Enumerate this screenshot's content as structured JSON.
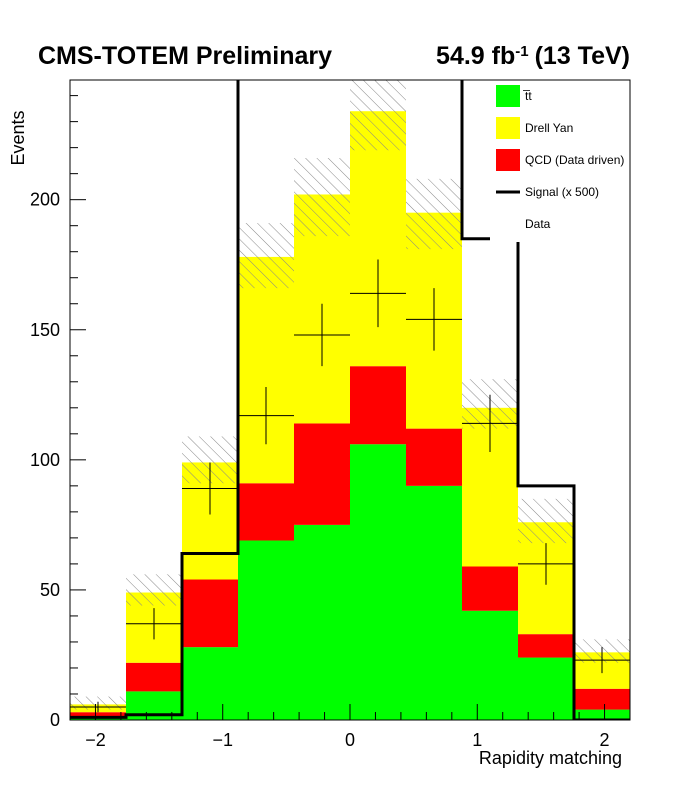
{
  "header": {
    "experiment": "CMS-TOTEM Preliminary",
    "lumi_value": "54.9 fb",
    "lumi_exp": "-1",
    "energy": "(13 TeV)"
  },
  "colors": {
    "ttbar": "#00ff00",
    "drell_yan": "#ffff00",
    "qcd": "#ff0000",
    "signal": "#000000",
    "data": "#000000"
  },
  "chart_data": {
    "type": "bar",
    "stacked": true,
    "xlabel": "Rapidity matching",
    "ylabel": "Events",
    "xlim": [
      -2.2,
      2.2
    ],
    "ylim": [
      0,
      246
    ],
    "bin_edges": [
      -2.2,
      -1.76,
      -1.32,
      -0.88,
      -0.44,
      0.0,
      0.44,
      0.88,
      1.32,
      1.76,
      2.2
    ],
    "x_ticks": [
      -2,
      -1,
      0,
      1,
      2
    ],
    "x_tick_labels": [
      "−2",
      "−1",
      "0",
      "1",
      "2"
    ],
    "y_ticks": [
      0,
      50,
      100,
      150,
      200
    ],
    "y_tick_labels": [
      "0",
      "50",
      "100",
      "150",
      "200"
    ],
    "series": [
      {
        "key": "ttbar",
        "name": "t̅t",
        "values": [
          1,
          11,
          28,
          69,
          75,
          106,
          90,
          42,
          24,
          4
        ]
      },
      {
        "key": "qcd",
        "name": "QCD (Data driven)",
        "values": [
          2,
          11,
          26,
          22,
          39,
          30,
          22,
          17,
          9,
          8
        ]
      },
      {
        "key": "drell_yan",
        "name": "Drell Yan",
        "values": [
          3,
          27,
          45,
          87,
          88,
          98,
          83,
          61,
          43,
          14
        ]
      }
    ],
    "uncertainty_band": {
      "lower": [
        4,
        44,
        91,
        166,
        186,
        219,
        181,
        112,
        68,
        22
      ],
      "upper": [
        9,
        56,
        109,
        191,
        216,
        246,
        208,
        131,
        85,
        31
      ]
    },
    "signal": {
      "name": "Signal (x 500)",
      "values": [
        1,
        2,
        64,
        400,
        400,
        400,
        400,
        185,
        90,
        0
      ]
    },
    "data": {
      "name": "Data",
      "x": [
        -1.98,
        -1.54,
        -1.1,
        -0.66,
        -0.22,
        0.22,
        0.66,
        1.1,
        1.54,
        1.98
      ],
      "y": [
        5,
        37,
        89,
        117,
        148,
        164,
        154,
        114,
        60,
        23
      ],
      "yerr": [
        2,
        6,
        10,
        11,
        12,
        13,
        12,
        11,
        8,
        5
      ]
    },
    "legend_order": [
      "ttbar",
      "drell_yan",
      "qcd",
      "signal",
      "data"
    ],
    "legend_position": "top-right",
    "legend_labels": {
      "ttbar": "t̅t",
      "drell_yan": "Drell Yan",
      "qcd": "QCD (Data driven)",
      "signal": "Signal (x 500)",
      "data": "Data"
    }
  }
}
